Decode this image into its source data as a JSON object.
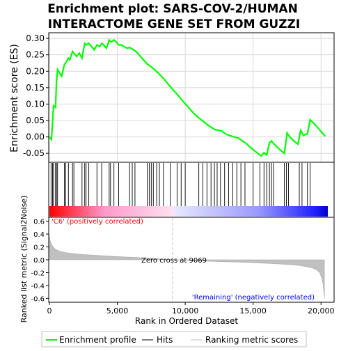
{
  "title_line1": "Enrichment plot: SARS-COV-2/HUMAN",
  "title_line2": "INTERACTOME GENE SET FROM GUZZI",
  "colors": {
    "enrichment_line": "#00ff00",
    "hits": "#000000",
    "metric_fill": "#c0c0c0",
    "positive_label": "#ff0000",
    "negative_label": "#0000ff",
    "zero_cross_line": "#c0c0c0"
  },
  "chart_data": [
    {
      "type": "line",
      "panel": "enrichment-profile",
      "ylabel": "Enrichment score (ES)",
      "xlim": [
        0,
        20500
      ],
      "ylim": [
        -0.075,
        0.315
      ],
      "yticks": [
        "0.30",
        "0.25",
        "0.20",
        "0.15",
        "0.10",
        "0.05",
        "0.00",
        "-0.05"
      ],
      "ytick_values": [
        0.3,
        0.25,
        0.2,
        0.15,
        0.1,
        0.05,
        0.0,
        -0.05
      ],
      "grid": true,
      "series": [
        {
          "name": "Enrichment profile",
          "x": [
            0,
            150,
            230,
            300,
            450,
            520,
            600,
            750,
            900,
            1100,
            1200,
            1400,
            1500,
            1700,
            1800,
            2000,
            2200,
            2400,
            2600,
            2700,
            2900,
            3100,
            3300,
            3500,
            3700,
            3850,
            4000,
            4200,
            4400,
            4500,
            4600,
            4750,
            4900,
            5100,
            5300,
            5500,
            5700,
            5900,
            6100,
            6300,
            6500,
            6800,
            7200,
            7600,
            8000,
            8400,
            8800,
            9069,
            9400,
            9800,
            10200,
            10600,
            11000,
            11400,
            11800,
            12200,
            12500,
            12700,
            13000,
            13300,
            13600,
            13900,
            14200,
            14500,
            14800,
            15100,
            15400,
            15600,
            15800,
            16000,
            16200,
            16350,
            16500,
            16700,
            17000,
            17300,
            17500,
            17700,
            18000,
            18300,
            18500,
            18700,
            19000,
            19200,
            19500,
            19800,
            20100,
            20300
          ],
          "y": [
            0.0,
            -0.008,
            0.045,
            0.095,
            0.09,
            0.165,
            0.205,
            0.195,
            0.185,
            0.22,
            0.225,
            0.24,
            0.235,
            0.26,
            0.255,
            0.245,
            0.255,
            0.24,
            0.285,
            0.28,
            0.285,
            0.275,
            0.265,
            0.28,
            0.275,
            0.285,
            0.28,
            0.27,
            0.295,
            0.29,
            0.29,
            0.295,
            0.29,
            0.28,
            0.28,
            0.275,
            0.27,
            0.272,
            0.268,
            0.262,
            0.255,
            0.24,
            0.222,
            0.21,
            0.195,
            0.178,
            0.158,
            0.145,
            0.13,
            0.11,
            0.092,
            0.073,
            0.058,
            0.045,
            0.032,
            0.022,
            0.02,
            0.018,
            0.008,
            0.004,
            0.0,
            -0.003,
            -0.012,
            -0.02,
            -0.032,
            -0.042,
            -0.052,
            -0.058,
            -0.048,
            -0.055,
            -0.018,
            -0.012,
            -0.02,
            -0.028,
            -0.04,
            -0.05,
            0.012,
            0.0,
            -0.012,
            -0.022,
            0.02,
            0.005,
            0.01,
            0.052,
            0.04,
            0.026,
            0.012,
            0.002
          ]
        }
      ]
    },
    {
      "type": "hits",
      "panel": "hits-and-color-bar",
      "series": [
        {
          "name": "Hits",
          "x": [
            120,
            230,
            300,
            450,
            520,
            600,
            1100,
            1200,
            1400,
            1700,
            1800,
            2400,
            2600,
            2700,
            2900,
            3500,
            3850,
            4400,
            4500,
            4750,
            5100,
            5900,
            6100,
            6300,
            7200,
            7350,
            7500,
            7650,
            7900,
            8100,
            8400,
            8900,
            9400,
            9700,
            10000,
            11000,
            11300,
            11600,
            11900,
            12150,
            12350,
            12600,
            12900,
            13200,
            13500,
            13800,
            14100,
            14400,
            15000,
            15500,
            15800,
            16000,
            16200,
            16350,
            16500,
            17300,
            17450,
            17600,
            18400,
            18600,
            19000,
            19200
          ]
        }
      ]
    },
    {
      "type": "area",
      "panel": "ranked-list-metric",
      "ylabel": "Ranked list metric (Signal2Noise)",
      "xlabel": "Rank in Ordered Dataset",
      "xlim": [
        0,
        20500
      ],
      "ylim": [
        -0.65,
        0.65
      ],
      "xticks": [
        "0",
        "5,000",
        "10,000",
        "15,000",
        "20,000"
      ],
      "xtick_values": [
        0,
        5000,
        10000,
        15000,
        20000
      ],
      "yticks": [
        "0.6",
        "0.4",
        "0.2",
        "0.0",
        "-0.2",
        "-0.4",
        "-0.6"
      ],
      "ytick_values": [
        0.6,
        0.4,
        0.2,
        0.0,
        -0.2,
        -0.4,
        -0.6
      ],
      "grid": false,
      "series": [
        {
          "name": "Ranking metric scores",
          "x": [
            0,
            50,
            150,
            300,
            500,
            800,
            1200,
            2000,
            3000,
            4000,
            5000,
            6000,
            7000,
            8000,
            9069,
            10000,
            11000,
            12000,
            13000,
            14000,
            15000,
            16000,
            17000,
            18000,
            18500,
            19000,
            19400,
            19700,
            19900,
            20050,
            20150,
            20200,
            20250
          ],
          "y": [
            0.38,
            0.3,
            0.24,
            0.19,
            0.155,
            0.13,
            0.11,
            0.09,
            0.075,
            0.062,
            0.05,
            0.04,
            0.028,
            0.015,
            0.0,
            -0.01,
            -0.018,
            -0.024,
            -0.03,
            -0.037,
            -0.045,
            -0.055,
            -0.066,
            -0.08,
            -0.09,
            -0.11,
            -0.13,
            -0.16,
            -0.2,
            -0.28,
            -0.38,
            -0.48,
            -0.6
          ]
        }
      ],
      "annotations": [
        "'C6' (positively correlated)",
        "Zero cross at 9069",
        "'Remaining' (negatively correlated)"
      ]
    }
  ],
  "text": {
    "es_ylabel": "Enrichment score (ES)",
    "metric_ylabel": "Ranked list metric (Signal2Noise)",
    "xlabel": "Rank in Ordered Dataset",
    "positive_label": "'C6' (positively correlated)",
    "negative_label": "'Remaining' (negatively correlated)",
    "zero_cross": "Zero cross at 9069",
    "legend_profile": "Enrichment profile",
    "legend_hits": "Hits",
    "legend_metric": "Ranking metric scores"
  }
}
